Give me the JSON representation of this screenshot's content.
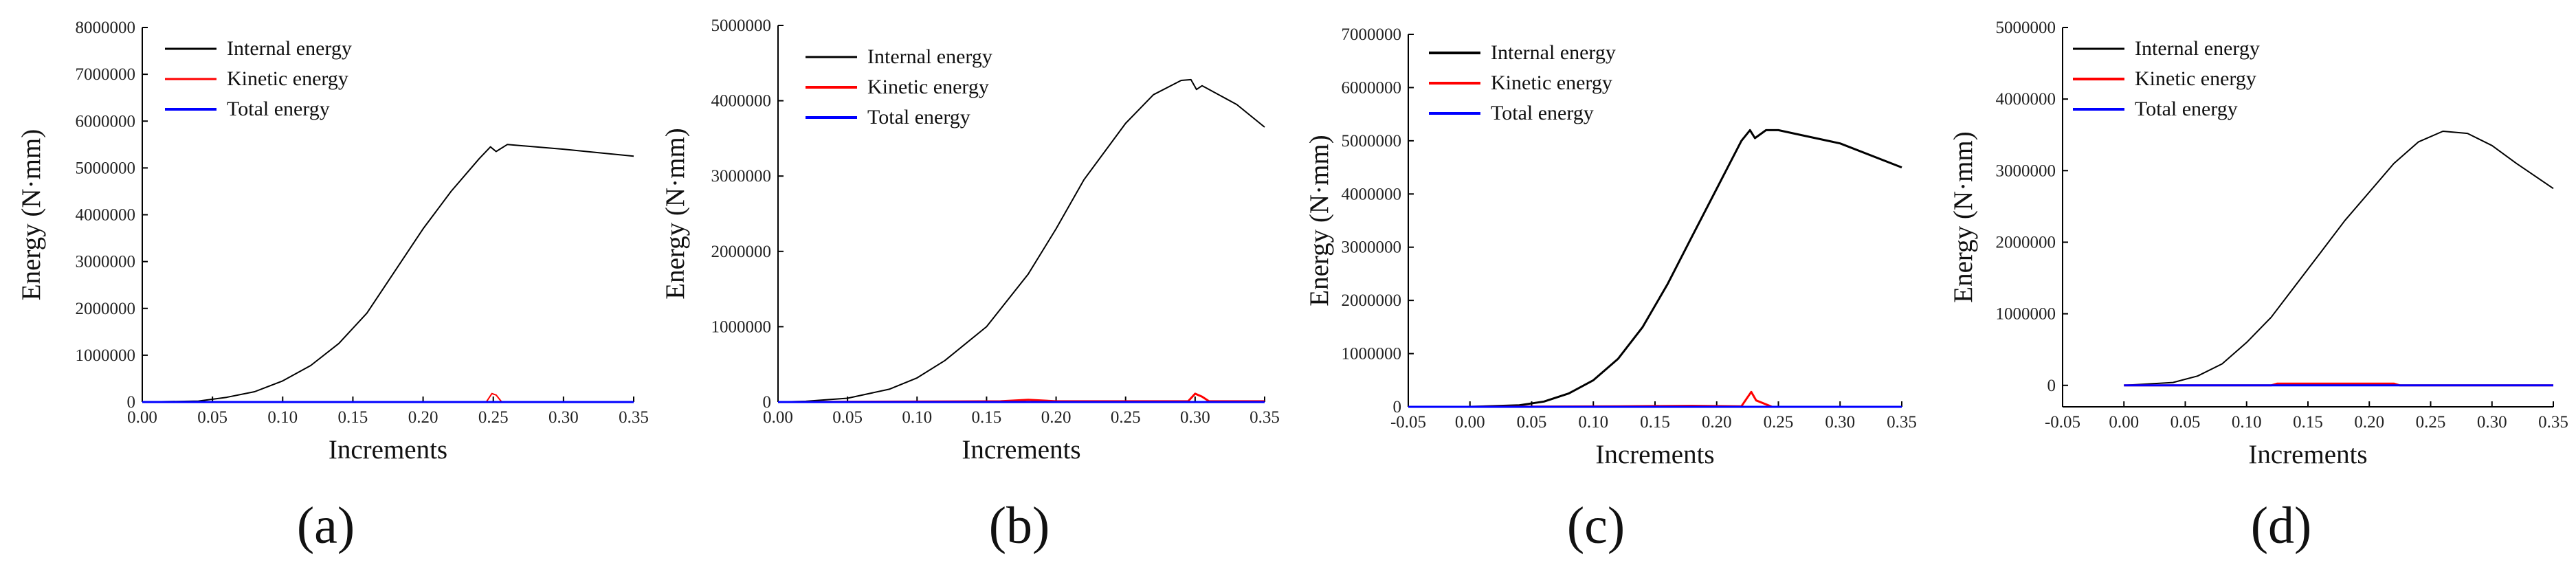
{
  "chart_data": [
    {
      "type": "line",
      "panel_label": "(a)",
      "xlabel": "Increments",
      "ylabel": "Energy (N·mm)",
      "xlim": [
        0.0,
        0.35
      ],
      "ylim": [
        0,
        8000000
      ],
      "xticks": [
        "0.00",
        "0.05",
        "0.10",
        "0.15",
        "0.20",
        "0.25",
        "0.30",
        "0.35"
      ],
      "yticks": [
        "0",
        "1000000",
        "2000000",
        "3000000",
        "4000000",
        "5000000",
        "6000000",
        "7000000",
        "8000000"
      ],
      "legend": [
        "Internal energy",
        "Kinetic energy",
        "Total energy"
      ],
      "series": [
        {
          "name": "Internal energy",
          "color": "#000000",
          "width": 2,
          "x": [
            0.0,
            0.04,
            0.06,
            0.08,
            0.1,
            0.12,
            0.14,
            0.16,
            0.18,
            0.2,
            0.22,
            0.24,
            0.248,
            0.252,
            0.26,
            0.3,
            0.35
          ],
          "y": [
            0,
            20000,
            100000,
            220000,
            450000,
            780000,
            1250000,
            1900000,
            2800000,
            3700000,
            4500000,
            5200000,
            5450000,
            5350000,
            5500000,
            5400000,
            5250000
          ]
        },
        {
          "name": "Kinetic energy",
          "color": "#ff0000",
          "width": 2,
          "x": [
            0.0,
            0.245,
            0.249,
            0.252,
            0.256,
            0.35
          ],
          "y": [
            0,
            0,
            180000,
            150000,
            0,
            0
          ]
        },
        {
          "name": "Total energy",
          "color": "#0000ff",
          "width": 3,
          "x": [
            0.0,
            0.35
          ],
          "y": [
            0,
            0
          ]
        }
      ]
    },
    {
      "type": "line",
      "panel_label": "(b)",
      "xlabel": "Increments",
      "ylabel": "Energy (N·mm)",
      "xlim": [
        0.0,
        0.35
      ],
      "ylim": [
        0,
        5000000
      ],
      "xticks": [
        "0.00",
        "0.05",
        "0.10",
        "0.15",
        "0.20",
        "0.25",
        "0.30",
        "0.35"
      ],
      "yticks": [
        "0",
        "1000000",
        "2000000",
        "3000000",
        "4000000",
        "5000000"
      ],
      "legend": [
        "Internal energy",
        "Kinetic energy",
        "Total energy"
      ],
      "series": [
        {
          "name": "Internal energy",
          "color": "#000000",
          "width": 2,
          "x": [
            0.0,
            0.02,
            0.05,
            0.08,
            0.1,
            0.12,
            0.15,
            0.18,
            0.2,
            0.22,
            0.25,
            0.27,
            0.29,
            0.297,
            0.301,
            0.305,
            0.33,
            0.35
          ],
          "y": [
            0,
            10000,
            50000,
            170000,
            320000,
            550000,
            1000000,
            1700000,
            2300000,
            2950000,
            3700000,
            4080000,
            4270000,
            4280000,
            4150000,
            4200000,
            3950000,
            3650000
          ]
        },
        {
          "name": "Kinetic energy",
          "color": "#ff0000",
          "width": 3,
          "x": [
            0.0,
            0.16,
            0.18,
            0.2,
            0.295,
            0.3,
            0.305,
            0.31,
            0.35
          ],
          "y": [
            0,
            10000,
            30000,
            10000,
            10000,
            110000,
            70000,
            10000,
            10000
          ]
        },
        {
          "name": "Total energy",
          "color": "#0000ff",
          "width": 3,
          "x": [
            0.0,
            0.35
          ],
          "y": [
            0,
            0
          ]
        }
      ]
    },
    {
      "type": "line",
      "panel_label": "(c)",
      "xlabel": "Increments",
      "ylabel": "Energy (N·mm)",
      "xlim": [
        -0.05,
        0.35
      ],
      "ylim": [
        0,
        7000000
      ],
      "xticks": [
        "-0.05",
        "0.00",
        "0.05",
        "0.10",
        "0.15",
        "0.20",
        "0.25",
        "0.30",
        "0.35"
      ],
      "yticks": [
        "0",
        "1000000",
        "2000000",
        "3000000",
        "4000000",
        "5000000",
        "6000000",
        "7000000"
      ],
      "legend": [
        "Internal energy",
        "Kinetic energy",
        "Total energy"
      ],
      "series": [
        {
          "name": "Internal energy",
          "color": "#000000",
          "width": 3,
          "x": [
            0.0,
            0.04,
            0.06,
            0.08,
            0.1,
            0.12,
            0.14,
            0.16,
            0.18,
            0.2,
            0.22,
            0.227,
            0.231,
            0.24,
            0.25,
            0.27,
            0.3,
            0.35
          ],
          "y": [
            0,
            30000,
            100000,
            250000,
            500000,
            900000,
            1500000,
            2300000,
            3200000,
            4100000,
            5000000,
            5200000,
            5050000,
            5200000,
            5200000,
            5100000,
            4950000,
            4500000
          ]
        },
        {
          "name": "Kinetic energy",
          "color": "#ff0000",
          "width": 3,
          "x": [
            0.0,
            0.12,
            0.18,
            0.22,
            0.228,
            0.232,
            0.245,
            0.35
          ],
          "y": [
            0,
            10000,
            20000,
            10000,
            280000,
            120000,
            0,
            0
          ]
        },
        {
          "name": "Total energy",
          "color": "#0000ff",
          "width": 3,
          "x": [
            -0.05,
            0.35
          ],
          "y": [
            0,
            0
          ]
        }
      ]
    },
    {
      "type": "line",
      "panel_label": "(d)",
      "xlabel": "Increments",
      "ylabel": "Energy (N·mm)",
      "xlim": [
        -0.05,
        0.35
      ],
      "ylim": [
        -300000,
        5000000
      ],
      "xticks": [
        "-0.05",
        "0.00",
        "0.05",
        "0.10",
        "0.15",
        "0.20",
        "0.25",
        "0.30",
        "0.35"
      ],
      "yticks": [
        "0",
        "1000000",
        "2000000",
        "3000000",
        "4000000",
        "5000000"
      ],
      "legend": [
        "Internal energy",
        "Kinetic energy",
        "Total energy"
      ],
      "series": [
        {
          "name": "Internal energy",
          "color": "#000000",
          "width": 2,
          "x": [
            0.0,
            0.04,
            0.06,
            0.08,
            0.1,
            0.12,
            0.14,
            0.16,
            0.18,
            0.2,
            0.22,
            0.24,
            0.26,
            0.28,
            0.3,
            0.32,
            0.35
          ],
          "y": [
            0,
            40000,
            130000,
            300000,
            600000,
            950000,
            1400000,
            1850000,
            2300000,
            2700000,
            3100000,
            3400000,
            3550000,
            3520000,
            3350000,
            3100000,
            2750000
          ]
        },
        {
          "name": "Kinetic energy",
          "color": "#ff0000",
          "width": 3,
          "x": [
            0.0,
            0.12,
            0.125,
            0.22,
            0.225,
            0.35
          ],
          "y": [
            0,
            0,
            25000,
            25000,
            0,
            0
          ]
        },
        {
          "name": "Total energy",
          "color": "#0000ff",
          "width": 3,
          "x": [
            0.0,
            0.35
          ],
          "y": [
            0,
            0
          ]
        }
      ]
    }
  ]
}
